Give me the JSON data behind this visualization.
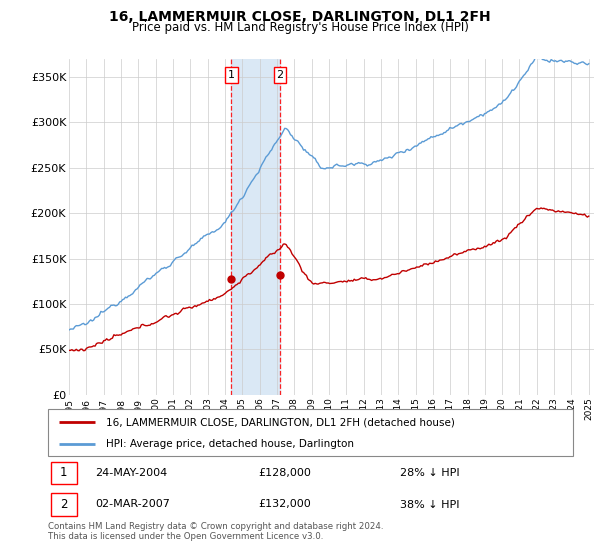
{
  "title": "16, LAMMERMUIR CLOSE, DARLINGTON, DL1 2FH",
  "subtitle": "Price paid vs. HM Land Registry's House Price Index (HPI)",
  "hpi_color": "#5b9bd5",
  "price_color": "#c00000",
  "highlight_color": "#dae8f5",
  "ylim": [
    0,
    370000
  ],
  "yticks": [
    0,
    50000,
    100000,
    150000,
    200000,
    250000,
    300000,
    350000
  ],
  "ytick_labels": [
    "£0",
    "£50K",
    "£100K",
    "£150K",
    "£200K",
    "£250K",
    "£300K",
    "£350K"
  ],
  "t1_year": 2004.37,
  "t2_year": 2007.17,
  "t1_price": 128000,
  "t2_price": 132000,
  "legend_line1": "16, LAMMERMUIR CLOSE, DARLINGTON, DL1 2FH (detached house)",
  "legend_line2": "HPI: Average price, detached house, Darlington",
  "row1_label": "1",
  "row1_date": "24-MAY-2004",
  "row1_price": "£128,000",
  "row1_pct": "28% ↓ HPI",
  "row2_label": "2",
  "row2_date": "02-MAR-2007",
  "row2_price": "£132,000",
  "row2_pct": "38% ↓ HPI",
  "footnote": "Contains HM Land Registry data © Crown copyright and database right 2024.\nThis data is licensed under the Open Government Licence v3.0.",
  "xstart": 1995,
  "xend": 2025
}
